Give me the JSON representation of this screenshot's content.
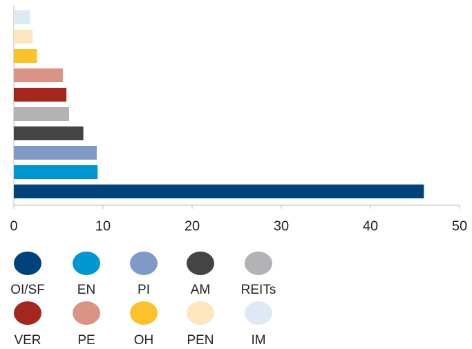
{
  "chart_data": {
    "type": "barh",
    "categories": [
      "OI/SF",
      "EN",
      "PI",
      "AM",
      "REITs",
      "VER",
      "PE",
      "OH",
      "PEN",
      "IM"
    ],
    "values": [
      46,
      9.4,
      9.3,
      7.8,
      6.2,
      5.9,
      5.5,
      2.6,
      2.1,
      1.8
    ],
    "colors": [
      "#00437a",
      "#0096d2",
      "#7f9ac7",
      "#444444",
      "#b3b3b5",
      "#a3271f",
      "#d99486",
      "#fdc12c",
      "#fde5bd",
      "#dde9f5"
    ],
    "xlim": [
      0,
      50
    ],
    "xticks": [
      0,
      10,
      20,
      30,
      40,
      50
    ],
    "legend": "bottom"
  }
}
